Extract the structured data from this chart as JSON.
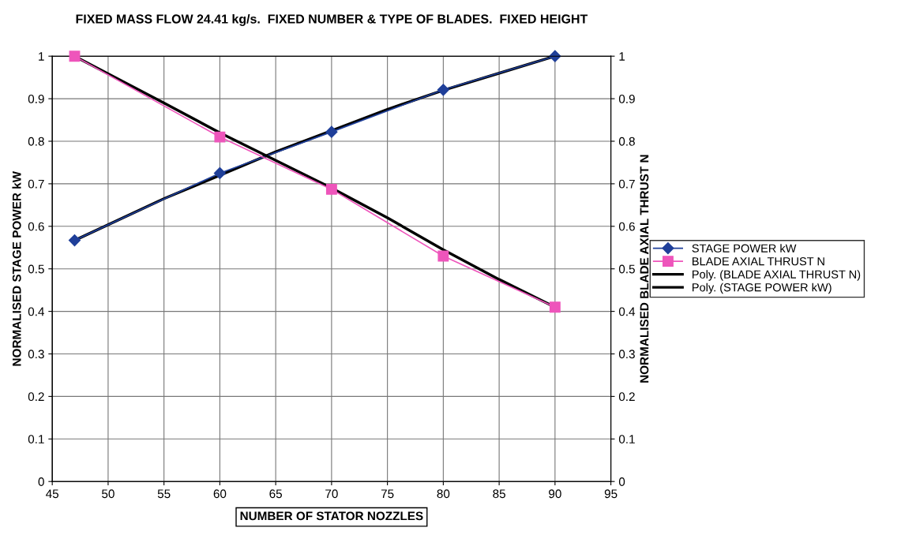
{
  "chart_data": {
    "type": "line",
    "title": "FIXED MASS FLOW 24.41 kg/s.  FIXED NUMBER & TYPE OF BLADES.  FIXED HEIGHT",
    "xlabel": "NUMBER OF STATOR NOZZLES",
    "ylabel": "NORMALISED STAGE POWER kW",
    "y2label": "NORMALISED BLADE AXIAL THRUST N",
    "x": [
      47,
      60,
      70,
      80,
      90
    ],
    "series": [
      {
        "name": "STAGE POWER kW",
        "color": "#1f3f99",
        "marker": "diamond",
        "values": [
          0.567,
          0.725,
          0.822,
          0.921,
          1.0
        ]
      },
      {
        "name": "BLADE AXIAL THRUST N",
        "color": "#ee55bb",
        "marker": "square",
        "axis": "y2",
        "values": [
          1.0,
          0.81,
          0.687,
          0.53,
          0.41
        ]
      },
      {
        "name": "Poly. (BLADE AXIAL THRUST N)",
        "color": "#000000",
        "marker": "none",
        "axis": "y2",
        "x": [
          47,
          55,
          60,
          65,
          70,
          75,
          80,
          85,
          90
        ],
        "values": [
          1.0,
          0.89,
          0.82,
          0.755,
          0.69,
          0.62,
          0.545,
          0.475,
          0.41
        ]
      },
      {
        "name": "Poly. (STAGE POWER kW)",
        "color": "#000000",
        "marker": "none",
        "x": [
          47,
          55,
          60,
          65,
          70,
          75,
          80,
          85,
          90
        ],
        "values": [
          0.567,
          0.665,
          0.72,
          0.775,
          0.825,
          0.875,
          0.92,
          0.96,
          1.0
        ]
      }
    ],
    "xlim": [
      45,
      95
    ],
    "xticks": [
      45,
      50,
      55,
      60,
      65,
      70,
      75,
      80,
      85,
      90,
      95
    ],
    "ylim": [
      0,
      1
    ],
    "yticks": [
      0,
      0.1,
      0.2,
      0.3,
      0.4,
      0.5,
      0.6,
      0.7,
      0.8,
      0.9,
      1
    ],
    "y2lim": [
      0,
      1
    ],
    "y2ticks": [
      0,
      0.1,
      0.2,
      0.3,
      0.4,
      0.5,
      0.6,
      0.7,
      0.8,
      0.9,
      1
    ],
    "grid": true,
    "legend": "right"
  }
}
